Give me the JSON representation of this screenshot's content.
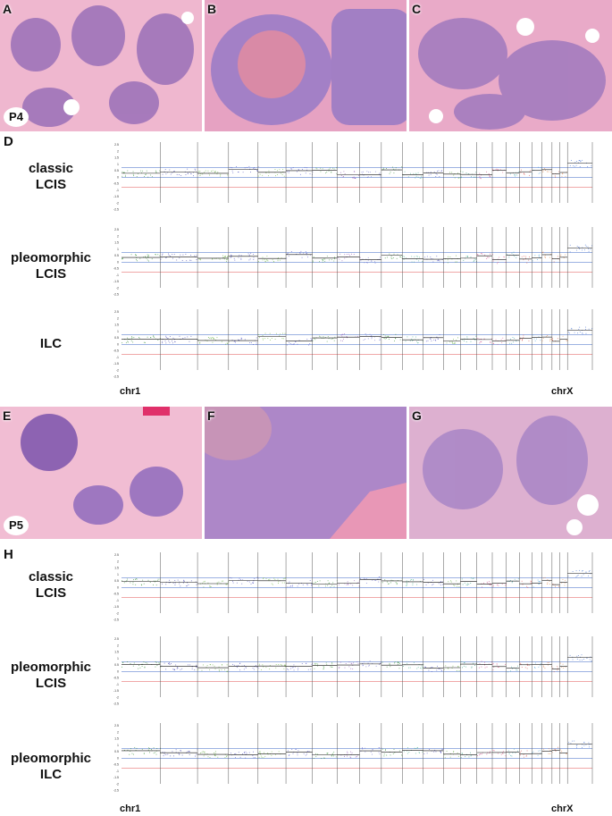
{
  "patient_p4": {
    "badge": "P4",
    "panels": [
      {
        "letter": "A"
      },
      {
        "letter": "B"
      },
      {
        "letter": "C"
      }
    ],
    "section_letter": "D",
    "rows": [
      {
        "label_line1": "classic",
        "label_line2": "LCIS"
      },
      {
        "label_line1": "pleomorphic",
        "label_line2": "LCIS"
      },
      {
        "label_line1": "ILC",
        "label_line2": ""
      }
    ],
    "chr_first": "chr1",
    "chr_last": "chrX"
  },
  "patient_p5": {
    "badge": "P5",
    "panels": [
      {
        "letter": "E"
      },
      {
        "letter": "F"
      },
      {
        "letter": "G"
      }
    ],
    "section_letter": "H",
    "rows": [
      {
        "label_line1": "classic",
        "label_line2": "LCIS"
      },
      {
        "label_line1": "pleomorphic",
        "label_line2": "LCIS"
      },
      {
        "label_line1": "pleomorphic",
        "label_line2": "ILC"
      }
    ],
    "chr_first": "chr1",
    "chr_last": "chrX"
  },
  "y_ticks": [
    "2.5",
    "2",
    "1.5",
    "1",
    "0.5",
    "0",
    "-0.5",
    "-1",
    "-1.5",
    "-2",
    "-2.5"
  ],
  "colors": {
    "he_pink": "#e8a9c4",
    "he_stroma": "#f2c6d8",
    "nuclei": "#6a4a9a",
    "red_arrow": "#e0302a",
    "blue_arrow": "#2f95d6",
    "black_arrow": "#111111"
  }
}
